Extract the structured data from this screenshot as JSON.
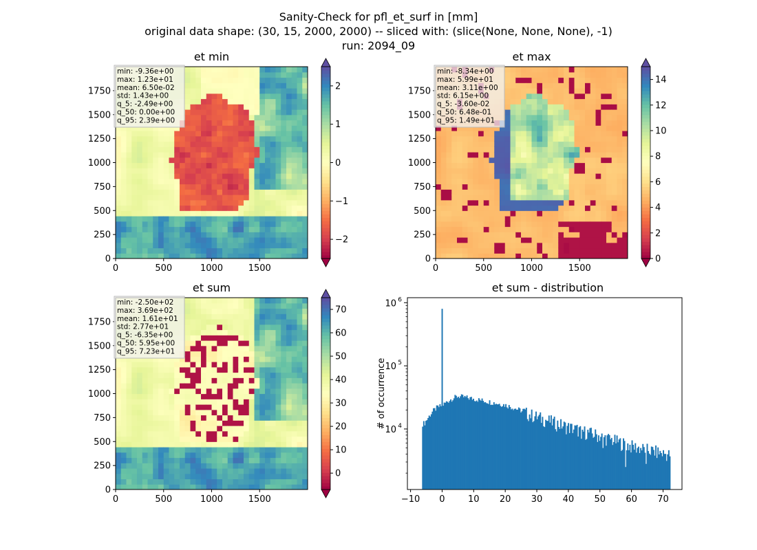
{
  "figure": {
    "title_lines": [
      "Sanity-Check for pfl_et_surf in [mm]",
      "original data shape: (30, 15, 2000, 2000) -- sliced with: (slice(None, None, None), -1)",
      "run: 2094_09"
    ]
  },
  "colormap": [
    "#9e0142",
    "#d53e4f",
    "#f46d43",
    "#fdae61",
    "#fee08b",
    "#ffffbf",
    "#e6f598",
    "#abdda4",
    "#66c2a5",
    "#3288bd",
    "#5e4fa2"
  ],
  "chart_data": [
    {
      "type": "heatmap",
      "title": "et min",
      "x_ticks": [
        0,
        500,
        1000,
        1500
      ],
      "y_ticks": [
        0,
        250,
        500,
        750,
        1000,
        1250,
        1500,
        1750
      ],
      "xlim": [
        0,
        2000
      ],
      "ylim": [
        0,
        2000
      ],
      "colorbar": {
        "vmin": -2.5,
        "vmax": 2.5,
        "ticks": [
          -2,
          -1,
          0,
          1,
          2
        ],
        "tick_labels": [
          "−2",
          "−1",
          "0",
          "1",
          "2"
        ],
        "extend": "both"
      },
      "stats": [
        "min: -9.36e+00",
        "max: 1.23e+01",
        "mean: 6.50e-02",
        "std: 1.43e+00",
        "q_5: -2.49e+00",
        "q_50: 0.00e+00",
        "q_95: 2.39e+00"
      ]
    },
    {
      "type": "heatmap",
      "title": "et max",
      "x_ticks": [
        0,
        500,
        1000,
        1500
      ],
      "y_ticks": [
        0,
        250,
        500,
        750,
        1000,
        1250,
        1500,
        1750
      ],
      "xlim": [
        0,
        2000
      ],
      "ylim": [
        0,
        2000
      ],
      "colorbar": {
        "vmin": 0,
        "vmax": 15,
        "ticks": [
          0,
          2,
          4,
          6,
          8,
          10,
          12,
          14
        ],
        "tick_labels": [
          "0",
          "2",
          "4",
          "6",
          "8",
          "10",
          "12",
          "14"
        ],
        "extend": "both"
      },
      "stats": [
        "min: -8.34e+00",
        "max: 5.99e+01",
        "mean: 3.11e+00",
        "std: 6.15e+00",
        "q_5: -3.60e-02",
        "q_50: 6.48e-01",
        "q_95: 1.49e+01"
      ]
    },
    {
      "type": "heatmap",
      "title": "et sum",
      "x_ticks": [
        0,
        500,
        1000,
        1500
      ],
      "y_ticks": [
        0,
        250,
        500,
        750,
        1000,
        1250,
        1500,
        1750
      ],
      "xlim": [
        0,
        2000
      ],
      "ylim": [
        0,
        2000
      ],
      "colorbar": {
        "vmin": -7,
        "vmax": 75,
        "ticks": [
          0,
          10,
          20,
          30,
          40,
          50,
          60,
          70
        ],
        "tick_labels": [
          "0",
          "10",
          "20",
          "30",
          "40",
          "50",
          "60",
          "70"
        ],
        "extend": "both"
      },
      "stats": [
        "min: -2.50e+02",
        "max: 3.69e+02",
        "mean: 1.61e+01",
        "std: 2.77e+01",
        "q_5: -6.35e+00",
        "q_50: 5.95e+00",
        "q_95: 7.23e+01"
      ]
    },
    {
      "type": "bar",
      "title": "et sum - distribution",
      "ylabel": "# of occurrence",
      "xlim": [
        -11,
        76
      ],
      "ylim": [
        1100,
        1200000
      ],
      "y_log": true,
      "x_ticks": [
        -10,
        0,
        10,
        20,
        30,
        40,
        50,
        60,
        70
      ],
      "x_tick_labels": [
        "−10",
        "0",
        "10",
        "20",
        "30",
        "40",
        "50",
        "60",
        "70"
      ],
      "y_ticks": [
        10000,
        100000,
        1000000
      ],
      "y_tick_base": "10",
      "y_tick_exponents": [
        "4",
        "5",
        "6"
      ],
      "bin_start": -6.35,
      "bin_end": 72.3,
      "bin_count": 230,
      "envelope_x": [
        -6.35,
        -5.5,
        -4.5,
        -3,
        -1.5,
        -0.5,
        0.5,
        1.5,
        3,
        5,
        10,
        20,
        30,
        40,
        50,
        60,
        72.3
      ],
      "envelope_y": [
        12000,
        12500,
        15000,
        19000,
        22000,
        23000,
        24500,
        27000,
        30000,
        33000,
        30000,
        24000,
        16000,
        11000,
        8000,
        5500,
        4000
      ],
      "spike": {
        "x": 0,
        "count": 800000
      },
      "dips": [
        {
          "x": 58,
          "count": 2500
        },
        {
          "x": 64.5,
          "count": 2800
        },
        {
          "x": 51,
          "count": 5000
        },
        {
          "x": 44,
          "count": 7000
        }
      ]
    }
  ]
}
